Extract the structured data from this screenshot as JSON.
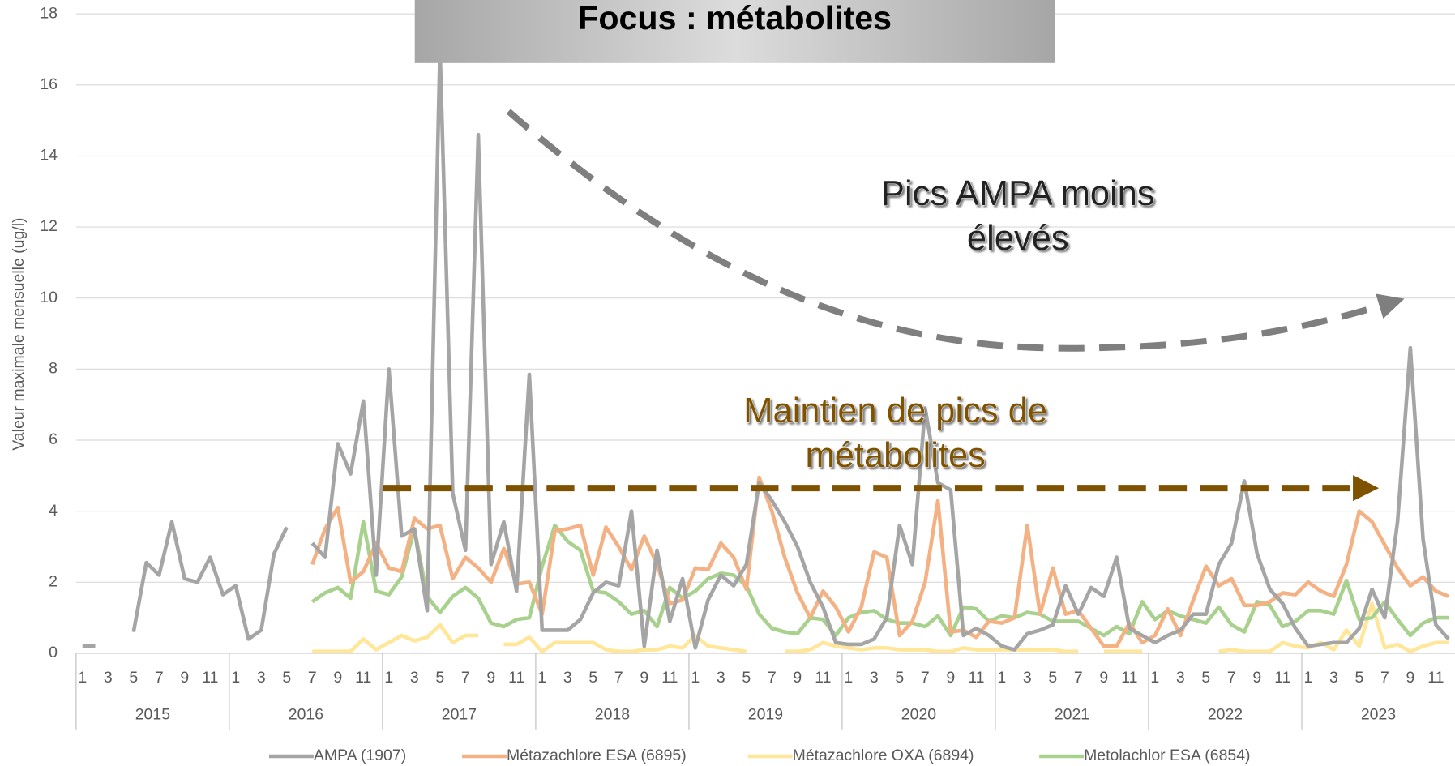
{
  "chart_data": {
    "type": "line",
    "title": "Focus : métabolites",
    "y_label": "Valeur maximale mensuelle (ug/l)",
    "annotations": [
      {
        "lines": [
          "Pics AMPA moins",
          "élevés"
        ],
        "color": "#222222"
      },
      {
        "lines": [
          "Maintien de pics de",
          "métabolites"
        ],
        "color": "#7f5200"
      }
    ],
    "years": [
      "2015",
      "2016",
      "2017",
      "2018",
      "2019",
      "2020",
      "2021",
      "2022",
      "2023"
    ],
    "categories": [
      "1",
      null,
      "3",
      null,
      "5",
      null,
      "7",
      null,
      "9",
      null,
      "11",
      null,
      "1",
      null,
      "3",
      null,
      "5",
      null,
      "7",
      null,
      "9",
      null,
      "11",
      null,
      "1",
      null,
      "3",
      null,
      "5",
      null,
      "7",
      null,
      "9",
      null,
      "11",
      null,
      "1",
      null,
      "3",
      null,
      "5",
      null,
      "7",
      null,
      "9",
      null,
      "11",
      null,
      "1",
      null,
      "3",
      null,
      "5",
      null,
      "7",
      null,
      "9",
      null,
      "11",
      null,
      "1",
      null,
      "3",
      null,
      "5",
      null,
      "7",
      null,
      "9",
      null,
      "11",
      null,
      "1",
      null,
      "3",
      null,
      "5",
      null,
      "7",
      null,
      "9",
      null,
      "11",
      null,
      "1",
      null,
      "3",
      null,
      "5",
      null,
      "7",
      null,
      "9",
      null,
      "11",
      null,
      "1",
      null,
      "3",
      null,
      "5",
      null,
      "7",
      null,
      "9",
      null,
      "11",
      null
    ],
    "series": [
      {
        "name": "AMPA (1907)",
        "color": "#a5a5a5",
        "values": [
          0.2,
          0.2,
          null,
          null,
          0.6,
          2.55,
          2.2,
          3.7,
          2.1,
          2.0,
          2.7,
          1.65,
          1.9,
          0.4,
          0.65,
          2.8,
          3.55,
          null,
          3.1,
          2.7,
          5.9,
          5.05,
          7.1,
          2.2,
          8.0,
          3.3,
          3.5,
          1.2,
          17.0,
          4.5,
          2.9,
          14.6,
          2.5,
          3.7,
          1.75,
          7.85,
          0.65,
          0.65,
          0.65,
          0.95,
          1.7,
          2.0,
          1.9,
          4.0,
          0.2,
          2.9,
          0.9,
          2.1,
          0.15,
          1.5,
          2.2,
          1.9,
          2.5,
          4.8,
          4.3,
          3.7,
          3.0,
          2.0,
          1.3,
          0.3,
          0.25,
          0.25,
          0.4,
          1.0,
          3.6,
          2.5,
          6.9,
          4.8,
          4.6,
          0.5,
          0.7,
          0.5,
          0.2,
          0.1,
          0.55,
          0.65,
          0.8,
          1.9,
          1.1,
          1.85,
          1.6,
          2.7,
          0.7,
          0.5,
          0.3,
          0.5,
          0.65,
          1.1,
          1.1,
          2.5,
          3.1,
          4.85,
          2.8,
          1.8,
          1.4,
          0.7,
          0.2,
          0.25,
          0.3,
          0.3,
          0.7,
          1.8,
          1.0,
          3.7,
          8.6,
          3.2,
          0.8,
          0.4
        ]
      },
      {
        "name": "Métazachlore ESA (6895)",
        "color": "#f4b183",
        "values": [
          null,
          null,
          null,
          null,
          null,
          null,
          null,
          null,
          null,
          null,
          null,
          null,
          null,
          null,
          null,
          null,
          null,
          null,
          2.5,
          3.5,
          4.1,
          2.0,
          2.3,
          3.1,
          2.4,
          2.3,
          3.8,
          3.5,
          3.6,
          2.1,
          2.7,
          2.4,
          2.0,
          2.95,
          1.95,
          2.0,
          1.1,
          3.45,
          3.5,
          3.6,
          2.2,
          3.55,
          3.0,
          2.35,
          3.3,
          2.5,
          1.4,
          1.5,
          2.4,
          2.35,
          3.1,
          2.7,
          1.8,
          4.95,
          4.0,
          2.7,
          1.7,
          1.0,
          1.75,
          1.3,
          0.6,
          1.3,
          2.85,
          2.7,
          0.5,
          0.9,
          2.0,
          4.3,
          0.6,
          0.65,
          0.45,
          0.9,
          0.85,
          1.0,
          3.6,
          1.1,
          2.4,
          1.1,
          1.2,
          0.7,
          0.2,
          0.2,
          0.85,
          0.3,
          0.5,
          1.25,
          0.5,
          1.5,
          2.45,
          1.9,
          2.1,
          1.35,
          1.35,
          1.45,
          1.7,
          1.65,
          2.0,
          1.75,
          1.6,
          2.5,
          4.0,
          3.7,
          3.05,
          2.4,
          1.9,
          2.15,
          1.75,
          1.6
        ]
      },
      {
        "name": "Métazachlore OXA (6894)",
        "color": "#ffe699",
        "values": [
          null,
          null,
          null,
          null,
          null,
          null,
          null,
          null,
          null,
          null,
          null,
          null,
          null,
          null,
          null,
          null,
          null,
          null,
          0.05,
          0.05,
          0.05,
          0.05,
          0.4,
          0.1,
          0.3,
          0.5,
          0.35,
          0.45,
          0.8,
          0.3,
          0.5,
          0.5,
          null,
          0.25,
          0.25,
          0.45,
          0.05,
          0.3,
          0.3,
          0.3,
          0.3,
          0.1,
          0.05,
          0.05,
          0.1,
          0.1,
          0.2,
          0.15,
          0.5,
          0.2,
          0.15,
          0.1,
          0.05,
          null,
          null,
          0.05,
          0.05,
          0.1,
          0.3,
          0.2,
          0.15,
          0.1,
          0.15,
          0.15,
          0.1,
          0.1,
          0.1,
          0.05,
          0.05,
          0.15,
          0.1,
          0.1,
          0.1,
          0.1,
          0.1,
          0.1,
          0.1,
          0.05,
          0.05,
          null,
          0.05,
          0.05,
          0.05,
          0.05,
          null,
          null,
          null,
          null,
          null,
          0.05,
          0.1,
          0.05,
          0.05,
          0.05,
          0.3,
          0.2,
          0.15,
          0.3,
          0.1,
          0.65,
          0.2,
          1.4,
          0.15,
          0.25,
          0.05,
          0.2,
          0.3,
          0.3
        ]
      },
      {
        "name": "Metolachlor ESA (6854)",
        "color": "#a9d18e",
        "values": [
          null,
          null,
          null,
          null,
          null,
          null,
          null,
          null,
          null,
          null,
          null,
          null,
          null,
          null,
          null,
          null,
          null,
          null,
          1.45,
          1.7,
          1.85,
          1.55,
          3.7,
          1.75,
          1.65,
          2.15,
          3.5,
          1.6,
          1.15,
          1.6,
          1.85,
          1.55,
          0.85,
          0.75,
          0.95,
          1.0,
          2.45,
          3.6,
          3.15,
          2.9,
          1.75,
          1.7,
          1.45,
          1.1,
          1.2,
          0.75,
          1.85,
          1.55,
          1.75,
          2.1,
          2.25,
          2.2,
          1.9,
          1.1,
          0.7,
          0.6,
          0.55,
          1.0,
          0.95,
          0.5,
          1.0,
          1.15,
          1.2,
          0.95,
          0.85,
          0.85,
          0.75,
          1.05,
          0.5,
          1.3,
          1.25,
          0.9,
          1.05,
          1.0,
          1.15,
          1.1,
          0.9,
          0.9,
          0.9,
          0.7,
          0.5,
          0.75,
          0.55,
          1.45,
          0.95,
          1.2,
          1.05,
          0.95,
          0.85,
          1.3,
          0.8,
          0.6,
          1.45,
          1.35,
          0.75,
          0.9,
          1.2,
          1.2,
          1.1,
          2.05,
          0.95,
          1.0,
          1.45,
          0.95,
          0.5,
          0.85,
          1.0,
          1.0
        ]
      }
    ],
    "ylim": [
      0,
      18
    ],
    "yticks": [
      0,
      2,
      4,
      6,
      8,
      10,
      12,
      14,
      16,
      18
    ],
    "grid": true,
    "legend": "bottom"
  }
}
